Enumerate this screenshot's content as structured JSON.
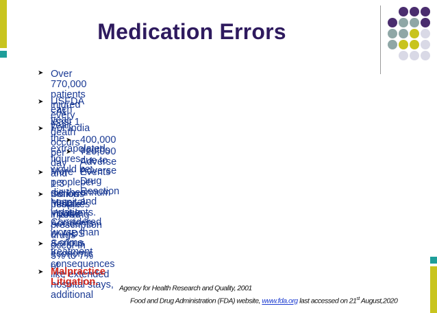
{
  "title": "Medication Errors",
  "bullets": [
    {
      "text": "Over 770,000 patients injured every year."
    },
    {
      "line1": "USFDA - At least 1 death occurs per day and 1.3 million people injured",
      "line2": "each year."
    },
    {
      "text": "For India the extrapolated figures would be:"
    },
    {
      "text": "400,000 deaths due to Adverse Drug Reaction and"
    },
    {
      "text": "720,000 Adverse Events per annum"
    },
    {
      "text": "More people die then Motor Vehicle Accidents or AIDS"
    },
    {
      "line1": "Serious mistakes involving prescription drugs occur in 3% to 7% of",
      "line2": "hospital inpatients."
    },
    {
      "text": "Considered worse than a crime"
    },
    {
      "line1": "Serious economic consequences like extended hospital stays, additional",
      "line2": "treatment"
    },
    {
      "text": "Malpractice Litigation."
    }
  ],
  "references": {
    "line1": "Agency for Health Research and Quality, 2001",
    "line2_before": "Food and Drug Administration (FDA) website, ",
    "link": "www.fda.org",
    "line2_after": " last accessed on 21",
    "sup": "st",
    "line2_end": " August,2020"
  },
  "colors": {
    "title": "#2e1a5e",
    "bullet_text": "#1a3a94",
    "highlight": "#d4291d",
    "accent_yellow": "#c8c41e",
    "accent_teal": "#1e9e9a",
    "dot_purple": "#4a2d6e",
    "dot_gray": "#8fa7a6",
    "dot_light": "#d9d9e6"
  }
}
